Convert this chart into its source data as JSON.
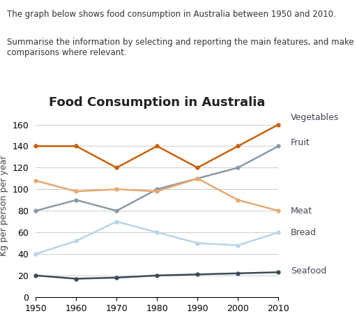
{
  "title": "Food Consumption in Australia",
  "text_line1": "The graph below shows food consumption in Australia between 1950 and 2010.",
  "text_line2": "Summarise the information by selecting and reporting the main features, and make\ncomparisons where relevant.",
  "ylabel": "Kg per person per year",
  "years": [
    1950,
    1960,
    1970,
    1980,
    1990,
    2000,
    2010
  ],
  "series": {
    "Vegetables": {
      "values": [
        140,
        140,
        120,
        140,
        120,
        140,
        160
      ],
      "color": "#c8600a",
      "linewidth": 1.8,
      "marker": "o",
      "markersize": 3.5,
      "zorder": 5
    },
    "Fruit": {
      "values": [
        108,
        98,
        100,
        98,
        110,
        90,
        80
      ],
      "color": "#e8a870",
      "linewidth": 1.8,
      "marker": "o",
      "markersize": 3.5,
      "zorder": 4
    },
    "Meat": {
      "values": [
        80,
        90,
        80,
        100,
        110,
        120,
        140
      ],
      "color": "#8899aa",
      "linewidth": 1.8,
      "marker": "o",
      "markersize": 3.5,
      "zorder": 3
    },
    "Bread": {
      "values": [
        40,
        52,
        70,
        60,
        50,
        48,
        60
      ],
      "color": "#b8d4e8",
      "linewidth": 1.8,
      "marker": "o",
      "markersize": 3.5,
      "zorder": 2
    },
    "Seafood": {
      "values": [
        20,
        17,
        18,
        20,
        21,
        22,
        23
      ],
      "color": "#3a4a5a",
      "linewidth": 1.8,
      "marker": "o",
      "markersize": 3.5,
      "zorder": 1
    }
  },
  "ylim": [
    0,
    170
  ],
  "yticks": [
    0,
    20,
    40,
    60,
    80,
    100,
    120,
    140,
    160
  ],
  "label_positions": {
    "Vegetables": {
      "y": 162,
      "va": "bottom"
    },
    "Fruit": {
      "y": 143,
      "va": "center"
    },
    "Meat": {
      "y": 80,
      "va": "center"
    },
    "Bread": {
      "y": 60,
      "va": "center"
    },
    "Seafood": {
      "y": 24,
      "va": "center"
    }
  },
  "background_color": "#ffffff",
  "grid_color": "#cccccc",
  "title_fontsize": 13,
  "body_fontsize": 8.5,
  "axis_label_fontsize": 9,
  "tick_fontsize": 9,
  "annot_fontsize": 9
}
